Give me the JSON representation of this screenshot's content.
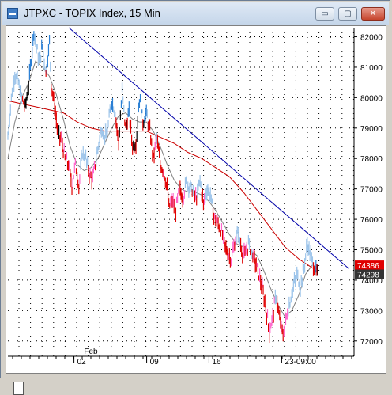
{
  "window": {
    "title": "JTPXC - TOPIX Index, 15 Min",
    "buttons": {
      "minimize": "▭",
      "maximize": "▢",
      "close": "✕"
    }
  },
  "chart_data": {
    "type": "line",
    "title": "JTPXC - TOPIX Index, 15 Min",
    "ylim": [
      715,
      823
    ],
    "y_ticks": [
      72000,
      73000,
      74000,
      75000,
      76000,
      77000,
      78000,
      79000,
      80000,
      81000,
      82000
    ],
    "y_tick_labels": [
      "72000",
      "73000",
      "74000",
      "75000",
      "76000",
      "77000",
      "78000",
      "79000",
      "80000",
      "81000",
      "82000"
    ],
    "x_tick_labels": [
      "Feb",
      "02",
      "09",
      "16",
      "23-09:00"
    ],
    "price_tags": [
      {
        "value": 743.86,
        "label": "74386",
        "color": "#e00000"
      },
      {
        "value": 742.98,
        "label": "74298",
        "color": "#333333"
      }
    ],
    "grid": true,
    "colors": {
      "up_strong": "#2a7fd4",
      "up_weak": "#9cc4ea",
      "down_strong": "#e00000",
      "down_weak": "#ff66cc",
      "neutral": "#000000",
      "ma_fast": "#808080",
      "ma_slow": "#cc0000",
      "trendline": "#0000aa"
    },
    "trendline": {
      "start": [
        0.176,
        823
      ],
      "end": [
        0.985,
        743.8
      ]
    },
    "price_path": [
      [
        0.0,
        787
      ],
      [
        0.01,
        800
      ],
      [
        0.02,
        808
      ],
      [
        0.03,
        805
      ],
      [
        0.04,
        800
      ],
      [
        0.05,
        797
      ],
      [
        0.06,
        804
      ],
      [
        0.075,
        822
      ],
      [
        0.09,
        812
      ],
      [
        0.1,
        817
      ],
      [
        0.11,
        808
      ],
      [
        0.12,
        818
      ],
      [
        0.125,
        805
      ],
      [
        0.135,
        797
      ],
      [
        0.145,
        788
      ],
      [
        0.155,
        786
      ],
      [
        0.165,
        780
      ],
      [
        0.175,
        778
      ],
      [
        0.185,
        771
      ],
      [
        0.195,
        778
      ],
      [
        0.205,
        771
      ],
      [
        0.215,
        782
      ],
      [
        0.225,
        780
      ],
      [
        0.235,
        775
      ],
      [
        0.245,
        773
      ],
      [
        0.255,
        780
      ],
      [
        0.27,
        790
      ],
      [
        0.285,
        787
      ],
      [
        0.3,
        799
      ],
      [
        0.31,
        795
      ],
      [
        0.32,
        785
      ],
      [
        0.33,
        802
      ],
      [
        0.34,
        790
      ],
      [
        0.35,
        795
      ],
      [
        0.36,
        784
      ],
      [
        0.37,
        785
      ],
      [
        0.38,
        800
      ],
      [
        0.39,
        792
      ],
      [
        0.4,
        795
      ],
      [
        0.41,
        789
      ],
      [
        0.42,
        780
      ],
      [
        0.43,
        787
      ],
      [
        0.44,
        778
      ],
      [
        0.45,
        776
      ],
      [
        0.46,
        770
      ],
      [
        0.465,
        764
      ],
      [
        0.475,
        766
      ],
      [
        0.485,
        763
      ],
      [
        0.495,
        770
      ],
      [
        0.505,
        767
      ],
      [
        0.515,
        772
      ],
      [
        0.525,
        771
      ],
      [
        0.535,
        769
      ],
      [
        0.545,
        767
      ],
      [
        0.555,
        773
      ],
      [
        0.565,
        765
      ],
      [
        0.575,
        770
      ],
      [
        0.585,
        768
      ],
      [
        0.595,
        761
      ],
      [
        0.605,
        759
      ],
      [
        0.615,
        757
      ],
      [
        0.625,
        752
      ],
      [
        0.635,
        749
      ],
      [
        0.645,
        747
      ],
      [
        0.655,
        752
      ],
      [
        0.665,
        756
      ],
      [
        0.675,
        750
      ],
      [
        0.685,
        748
      ],
      [
        0.695,
        752
      ],
      [
        0.705,
        749
      ],
      [
        0.715,
        746
      ],
      [
        0.725,
        742
      ],
      [
        0.735,
        737
      ],
      [
        0.745,
        731
      ],
      [
        0.755,
        723
      ],
      [
        0.765,
        728
      ],
      [
        0.775,
        735
      ],
      [
        0.785,
        727
      ],
      [
        0.795,
        722
      ],
      [
        0.805,
        728
      ],
      [
        0.815,
        733
      ],
      [
        0.825,
        738
      ],
      [
        0.835,
        742
      ],
      [
        0.845,
        738
      ],
      [
        0.855,
        744
      ],
      [
        0.865,
        752
      ],
      [
        0.875,
        748
      ],
      [
        0.885,
        744
      ],
      [
        0.895,
        742
      ]
    ],
    "ma_fast": [
      [
        0.0,
        780
      ],
      [
        0.02,
        792
      ],
      [
        0.04,
        800
      ],
      [
        0.06,
        805
      ],
      [
        0.08,
        812
      ],
      [
        0.1,
        810
      ],
      [
        0.12,
        807
      ],
      [
        0.14,
        801
      ],
      [
        0.16,
        793
      ],
      [
        0.18,
        784
      ],
      [
        0.2,
        778
      ],
      [
        0.22,
        776
      ],
      [
        0.24,
        777
      ],
      [
        0.26,
        780
      ],
      [
        0.28,
        785
      ],
      [
        0.3,
        790
      ],
      [
        0.32,
        794
      ],
      [
        0.34,
        795
      ],
      [
        0.36,
        793
      ],
      [
        0.38,
        792
      ],
      [
        0.4,
        792
      ],
      [
        0.42,
        789
      ],
      [
        0.44,
        784
      ],
      [
        0.46,
        778
      ],
      [
        0.48,
        773
      ],
      [
        0.5,
        770
      ],
      [
        0.52,
        769
      ],
      [
        0.54,
        769
      ],
      [
        0.56,
        768
      ],
      [
        0.58,
        766
      ],
      [
        0.6,
        763
      ],
      [
        0.62,
        759
      ],
      [
        0.64,
        755
      ],
      [
        0.66,
        752
      ],
      [
        0.68,
        751
      ],
      [
        0.7,
        750
      ],
      [
        0.72,
        748
      ],
      [
        0.74,
        743
      ],
      [
        0.76,
        737
      ],
      [
        0.78,
        732
      ],
      [
        0.8,
        728
      ],
      [
        0.82,
        730
      ],
      [
        0.84,
        735
      ],
      [
        0.86,
        742
      ],
      [
        0.88,
        745
      ],
      [
        0.895,
        744
      ]
    ],
    "ma_slow": [
      [
        0.0,
        799
      ],
      [
        0.04,
        798
      ],
      [
        0.08,
        797
      ],
      [
        0.12,
        796
      ],
      [
        0.16,
        795
      ],
      [
        0.2,
        792
      ],
      [
        0.24,
        790
      ],
      [
        0.28,
        789
      ],
      [
        0.32,
        789
      ],
      [
        0.36,
        789
      ],
      [
        0.4,
        789
      ],
      [
        0.44,
        787
      ],
      [
        0.48,
        785
      ],
      [
        0.52,
        782
      ],
      [
        0.56,
        780
      ],
      [
        0.6,
        777
      ],
      [
        0.64,
        774
      ],
      [
        0.68,
        769
      ],
      [
        0.72,
        763
      ],
      [
        0.76,
        757
      ],
      [
        0.8,
        751
      ],
      [
        0.84,
        747
      ],
      [
        0.88,
        744
      ],
      [
        0.895,
        743.8
      ]
    ]
  }
}
